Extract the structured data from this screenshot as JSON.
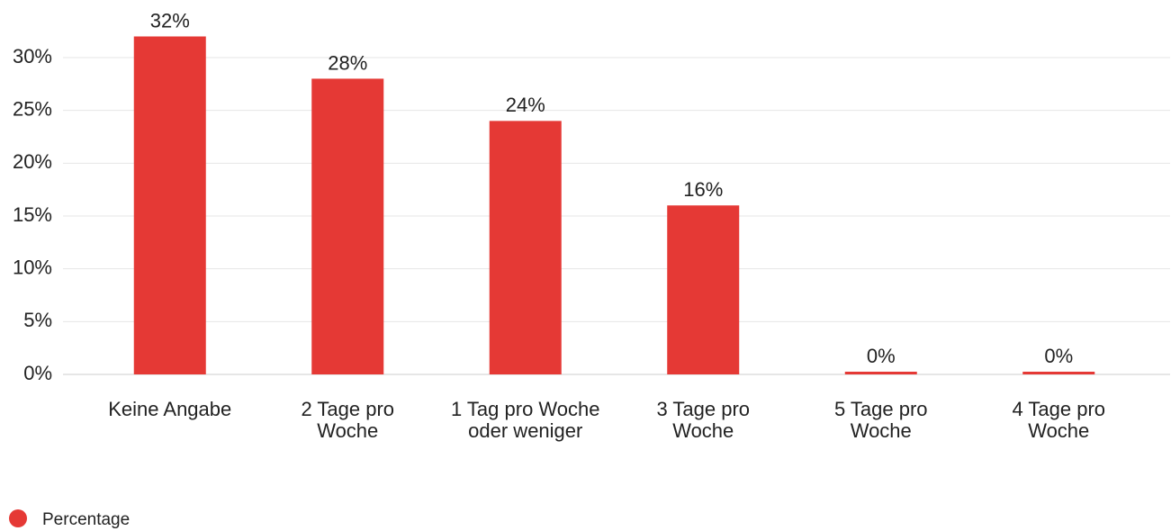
{
  "chart_data": {
    "type": "bar",
    "categories": [
      "Keine Angabe",
      "2 Tage pro Woche",
      "1 Tag pro Woche oder weniger",
      "3 Tage pro Woche",
      "5 Tage pro Woche",
      "4 Tage pro Woche"
    ],
    "series": [
      {
        "name": "Percentage",
        "color": "#e53935",
        "values": [
          32,
          28,
          24,
          16,
          0,
          0
        ],
        "value_labels": [
          "32%",
          "28%",
          "24%",
          "16%",
          "0%",
          "0%"
        ]
      }
    ],
    "ylim": [
      0,
      32
    ],
    "yticks": [
      {
        "value": 0,
        "label": "0%"
      },
      {
        "value": 5,
        "label": "5%"
      },
      {
        "value": 10,
        "label": "10%"
      },
      {
        "value": 15,
        "label": "15%"
      },
      {
        "value": 20,
        "label": "20%"
      },
      {
        "value": 25,
        "label": "25%"
      },
      {
        "value": 30,
        "label": "30%"
      }
    ],
    "grid": true,
    "legend": "bottom-left"
  }
}
